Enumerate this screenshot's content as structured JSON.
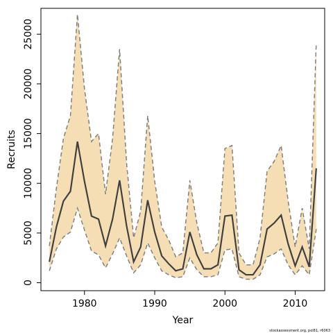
{
  "chart_data": {
    "type": "line",
    "xlabel": "Year",
    "ylabel": "Recruits",
    "credit": "stockassessment.org, pol81, r6063",
    "xlim": [
      1973.8,
      2014.2
    ],
    "ylim": [
      -800,
      27600
    ],
    "x_ticks": [
      1980,
      1990,
      2000,
      2010
    ],
    "y_ticks": [
      0,
      5000,
      10000,
      15000,
      20000,
      25000
    ],
    "grid": false,
    "legend": "none",
    "colors": {
      "band_fill": "#f5deb3",
      "bound_line": "#808080",
      "estimate_line": "#404040",
      "frame": "#000000"
    },
    "x": [
      1975,
      1976,
      1977,
      1978,
      1979,
      1980,
      1981,
      1982,
      1983,
      1984,
      1985,
      1986,
      1987,
      1988,
      1989,
      1990,
      1991,
      1992,
      1993,
      1994,
      1995,
      1996,
      1997,
      1998,
      1999,
      2000,
      2001,
      2002,
      2003,
      2004,
      2005,
      2006,
      2007,
      2008,
      2009,
      2010,
      2011,
      2012,
      2013
    ],
    "series": [
      {
        "role": "estimate",
        "values": [
          2100,
          5600,
          8200,
          9200,
          14200,
          10200,
          6700,
          6400,
          3700,
          6400,
          10300,
          5700,
          2100,
          3600,
          8300,
          5100,
          2700,
          1900,
          1200,
          1400,
          5100,
          2800,
          1400,
          1400,
          1800,
          6700,
          6800,
          1300,
          800,
          800,
          1800,
          5400,
          6000,
          6800,
          3900,
          1700,
          3600,
          1600,
          11500
        ]
      },
      {
        "role": "upper",
        "values": [
          3700,
          9500,
          14500,
          16800,
          27000,
          19500,
          14200,
          15000,
          8900,
          14500,
          23500,
          12000,
          4500,
          7200,
          16800,
          10200,
          5600,
          4300,
          2600,
          3000,
          10300,
          6000,
          3000,
          3000,
          4000,
          13500,
          13800,
          3000,
          1800,
          1800,
          4500,
          11200,
          12200,
          13800,
          8200,
          3600,
          7500,
          3400,
          24100
        ]
      },
      {
        "role": "lower",
        "values": [
          1200,
          3400,
          4600,
          5100,
          7500,
          5300,
          3200,
          2800,
          1500,
          2900,
          4500,
          2700,
          1000,
          1800,
          4000,
          2500,
          1200,
          800,
          500,
          600,
          2500,
          1300,
          600,
          600,
          800,
          3300,
          3400,
          600,
          350,
          350,
          800,
          2600,
          2900,
          3400,
          1800,
          800,
          1700,
          800,
          5400
        ]
      }
    ]
  }
}
